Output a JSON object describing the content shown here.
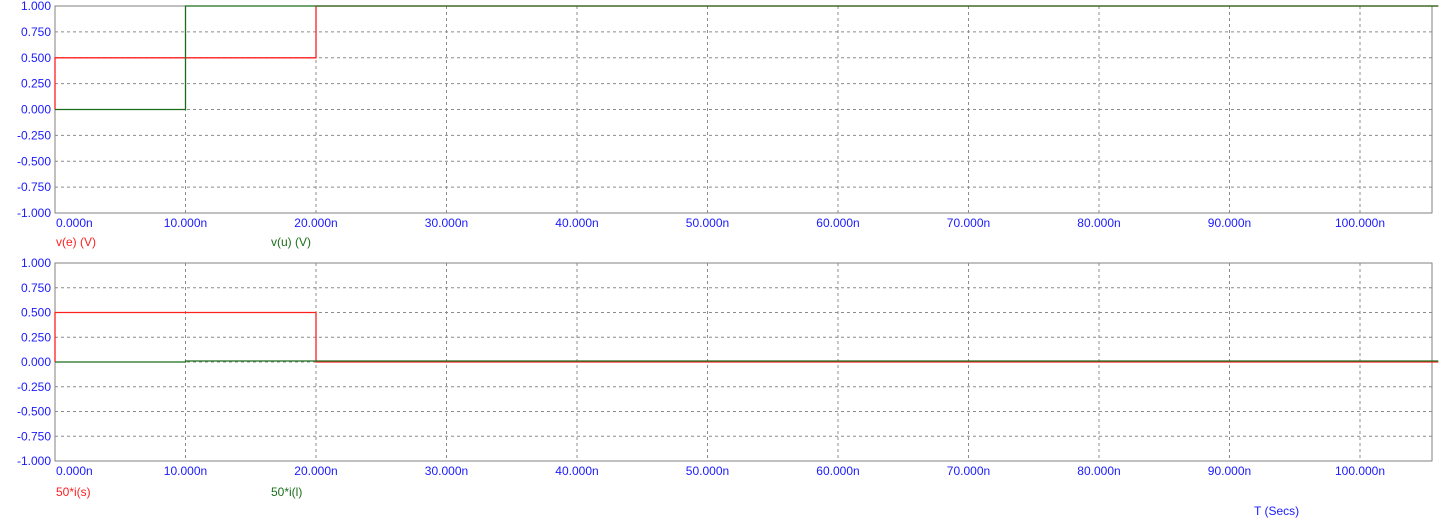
{
  "colors": {
    "tick": "#1a1aff",
    "red": "#ff2020",
    "green": "#1a6e1a",
    "grid": "#8c8c8c",
    "frame": "#808080",
    "axis_label": "#1a1aff"
  },
  "x_axis_title": "T (Secs)",
  "chart_data": [
    {
      "type": "line",
      "xlabel": "",
      "ylabel": "",
      "xlim": [
        0,
        106
      ],
      "ylim": [
        -1,
        1
      ],
      "x_ticks": [
        "0.000n",
        "10.000n",
        "20.000n",
        "30.000n",
        "40.000n",
        "50.000n",
        "60.000n",
        "70.000n",
        "80.000n",
        "90.000n",
        "100.000n"
      ],
      "y_ticks": [
        "1.000",
        "0.750",
        "0.500",
        "0.250",
        "0.000",
        "-0.250",
        "-0.500",
        "-0.750",
        "-1.000"
      ],
      "grid": true,
      "series": [
        {
          "name": "v(e) (V)",
          "color": "red",
          "points": [
            [
              0,
              0
            ],
            [
              0,
              0.5
            ],
            [
              20,
              0.5
            ],
            [
              20,
              1
            ],
            [
              106,
              1
            ]
          ]
        },
        {
          "name": "v(u) (V)",
          "color": "green",
          "points": [
            [
              0,
              0
            ],
            [
              10,
              0
            ],
            [
              10,
              1
            ],
            [
              106,
              1
            ]
          ]
        }
      ]
    },
    {
      "type": "line",
      "xlabel": "T (Secs)",
      "ylabel": "",
      "xlim": [
        0,
        106
      ],
      "ylim": [
        -1,
        1
      ],
      "x_ticks": [
        "0.000n",
        "10.000n",
        "20.000n",
        "30.000n",
        "40.000n",
        "50.000n",
        "60.000n",
        "70.000n",
        "80.000n",
        "90.000n",
        "100.000n"
      ],
      "y_ticks": [
        "1.000",
        "0.750",
        "0.500",
        "0.250",
        "0.000",
        "-0.250",
        "-0.500",
        "-0.750",
        "-1.000"
      ],
      "grid": true,
      "series": [
        {
          "name": "50*i(s)",
          "color": "red",
          "points": [
            [
              0,
              0
            ],
            [
              0,
              0.5
            ],
            [
              20,
              0.5
            ],
            [
              20,
              0
            ],
            [
              106,
              0
            ]
          ]
        },
        {
          "name": "50*i(l)",
          "color": "green",
          "points": [
            [
              0,
              0
            ],
            [
              10,
              0
            ],
            [
              10,
              0.01
            ],
            [
              106,
              0.01
            ]
          ]
        }
      ]
    }
  ]
}
